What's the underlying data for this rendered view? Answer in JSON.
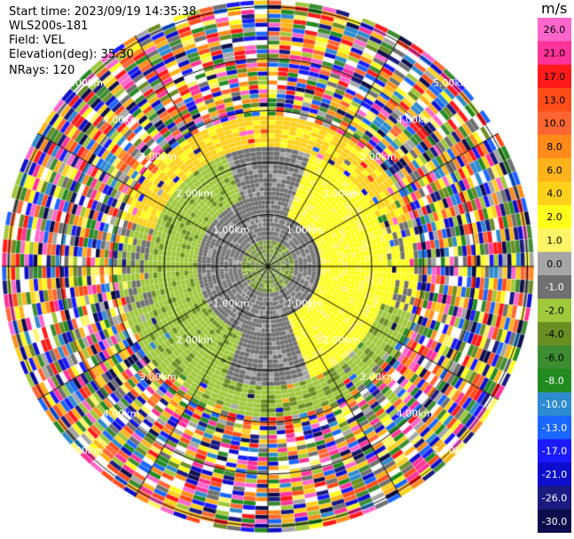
{
  "meta": {
    "start_time": "Start time: 2023/09/19 14:35:38",
    "instrument": "WLS200s-181",
    "field": "Field: VEL",
    "elevation": "Elevation(deg): 35.30",
    "nrays": "NRays: 120"
  },
  "colorbar": {
    "unit": "m/s",
    "ticks": [
      "26.0",
      "21.0",
      "17.0",
      "13.0",
      "10.0",
      "8.0",
      "6.0",
      "4.0",
      "2.0",
      "1.0",
      "0.0",
      "-1.0",
      "-2.0",
      "-4.0",
      "-6.0",
      "-8.0",
      "-10.0",
      "-13.0",
      "-17.0",
      "-21.0",
      "-26.0",
      "-30.0"
    ],
    "colors": [
      "#ff66cc",
      "#ff3399",
      "#ff1a1a",
      "#ff4d1a",
      "#ff6633",
      "#ff8c1a",
      "#ffb31a",
      "#ffd11a",
      "#ffff1a",
      "#fff566",
      "#a6a6a6",
      "#707070",
      "#a0c83c",
      "#6b8e23",
      "#3c8c32",
      "#228b22",
      "#2e8bcf",
      "#1a66ff",
      "#1a1aff",
      "#0d0dcc",
      "#1a1a80",
      "#0d0d4d"
    ]
  },
  "range_rings": {
    "labels": [
      "1.00km",
      "2.00km",
      "3.00km",
      "4.00km",
      "5.00km"
    ]
  },
  "scan": {
    "rays": 120
  }
}
